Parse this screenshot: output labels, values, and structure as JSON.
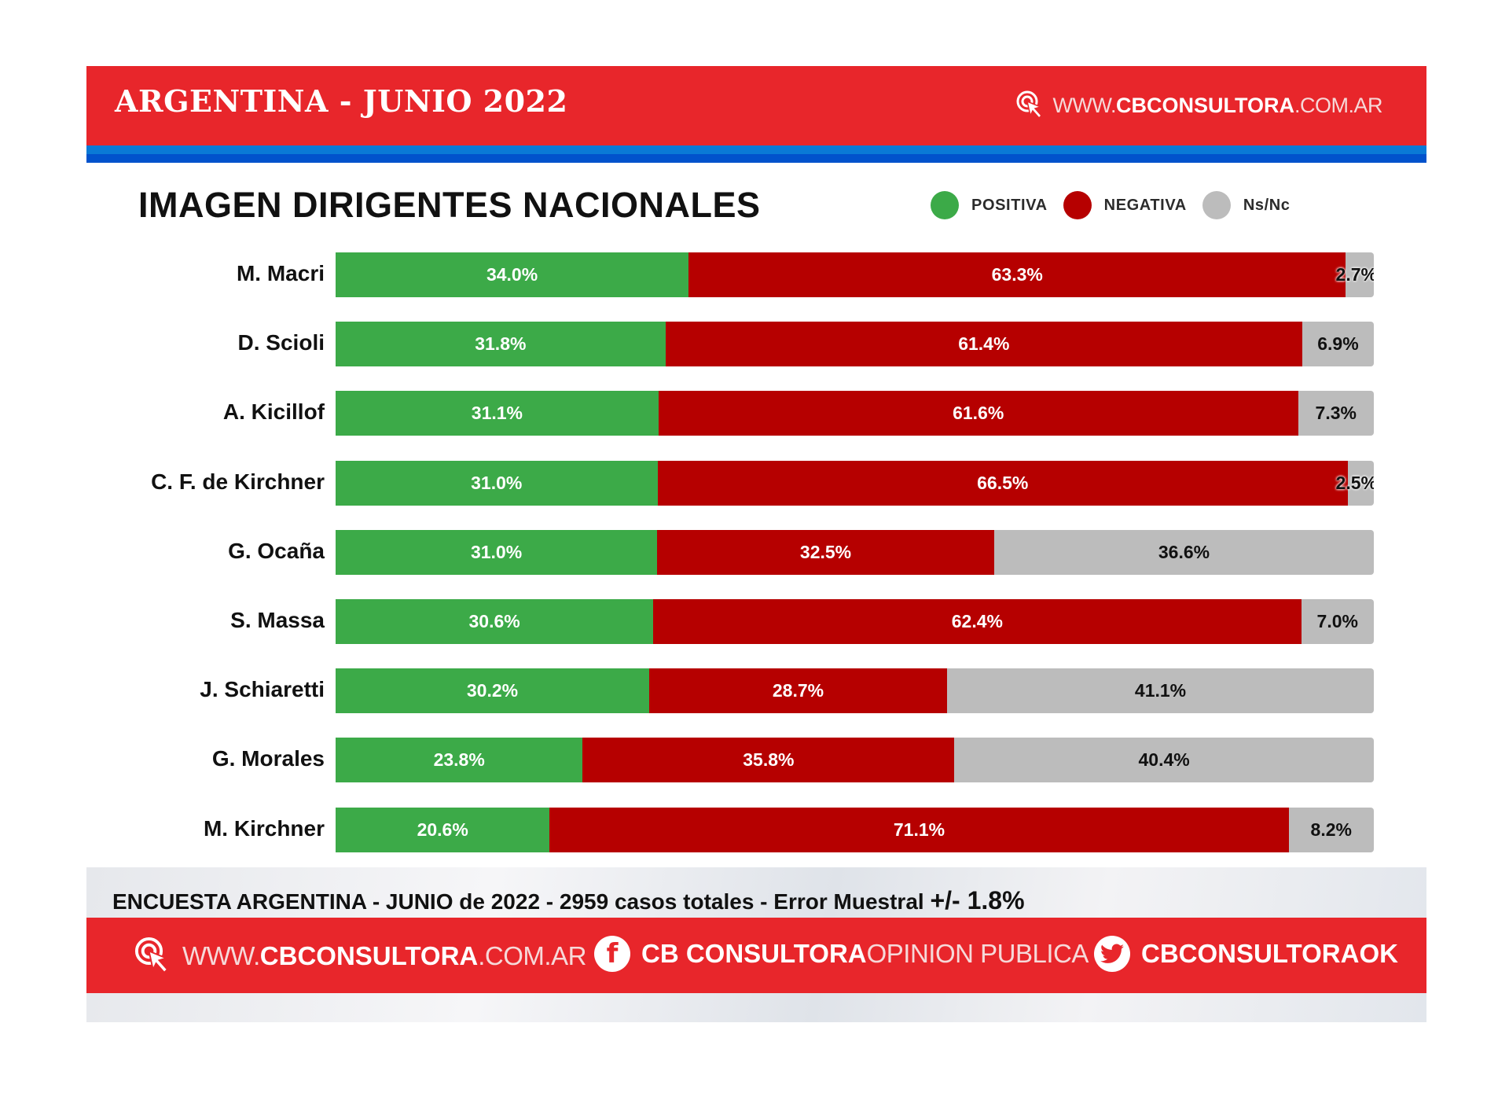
{
  "header": {
    "title": "ARGENTINA - JUNIO 2022",
    "site_prefix": "WWW.",
    "site_main": "CBCONSULTORA",
    "site_suffix": ".COM.AR",
    "icon": "cursor-click-icon"
  },
  "colors": {
    "brand_red": "#e8262b",
    "band_blue_light": "#0a79d6",
    "band_blue_dark": "#0152cc",
    "positiva": "#3caa48",
    "negativa": "#b60000",
    "nsnc": "#bcbcbc"
  },
  "legend": [
    {
      "label": "POSITIVA",
      "color": "#3caa48"
    },
    {
      "label": "NEGATIVA",
      "color": "#b60000"
    },
    {
      "label": "Ns/Nc",
      "color": "#bcbcbc"
    }
  ],
  "chart_data": {
    "type": "bar",
    "orientation": "horizontal",
    "stacked": true,
    "title": "IMAGEN DIRIGENTES NACIONALES",
    "xlabel": "",
    "ylabel": "",
    "xlim": [
      0,
      100
    ],
    "unit": "%",
    "categories": [
      "M. Macri",
      "D. Scioli",
      "A. Kicillof",
      "C. F. de Kirchner",
      "G. Ocaña",
      "S. Massa",
      "J. Schiaretti",
      "G. Morales",
      "M. Kirchner"
    ],
    "series": [
      {
        "name": "POSITIVA",
        "values": [
          34.0,
          31.8,
          31.1,
          31.0,
          31.0,
          30.6,
          30.2,
          23.8,
          20.6
        ]
      },
      {
        "name": "NEGATIVA",
        "values": [
          63.3,
          61.4,
          61.6,
          66.5,
          32.5,
          62.4,
          28.7,
          35.8,
          71.1
        ]
      },
      {
        "name": "Ns/Nc",
        "values": [
          2.7,
          6.9,
          7.3,
          2.5,
          36.6,
          7.0,
          41.1,
          40.4,
          8.2
        ]
      }
    ],
    "labels": [
      [
        "34.0%",
        "63.3%",
        "2.7%"
      ],
      [
        "31.8%",
        "61.4%",
        "6.9%"
      ],
      [
        "31.1%",
        "61.6%",
        "7.3%"
      ],
      [
        "31.0%",
        "66.5%",
        "2.5%"
      ],
      [
        "31.0%",
        "32.5%",
        "36.6%"
      ],
      [
        "30.6%",
        "62.4%",
        "7.0%"
      ],
      [
        "30.2%",
        "28.7%",
        "41.1%"
      ],
      [
        "23.8%",
        "35.8%",
        "40.4%"
      ],
      [
        "20.6%",
        "71.1%",
        "8.2%"
      ]
    ],
    "legend_position": "top-right",
    "grid": false
  },
  "footer": {
    "survey_text": "ENCUESTA ARGENTINA - JUNIO de 2022 -  2959 casos totales - Error Muestral ",
    "survey_error": "+/- 1.8%",
    "links": [
      {
        "icon": "cursor-click-icon",
        "prefix": "WWW.",
        "bold": "CBCONSULTORA",
        "suffix": ".COM.AR"
      },
      {
        "icon": "facebook-icon",
        "bold": "CB CONSULTORA",
        "suffix": " OPINION PUBLICA"
      },
      {
        "icon": "twitter-icon",
        "bold": "CBCONSULTORAOK",
        "suffix": ""
      }
    ]
  }
}
